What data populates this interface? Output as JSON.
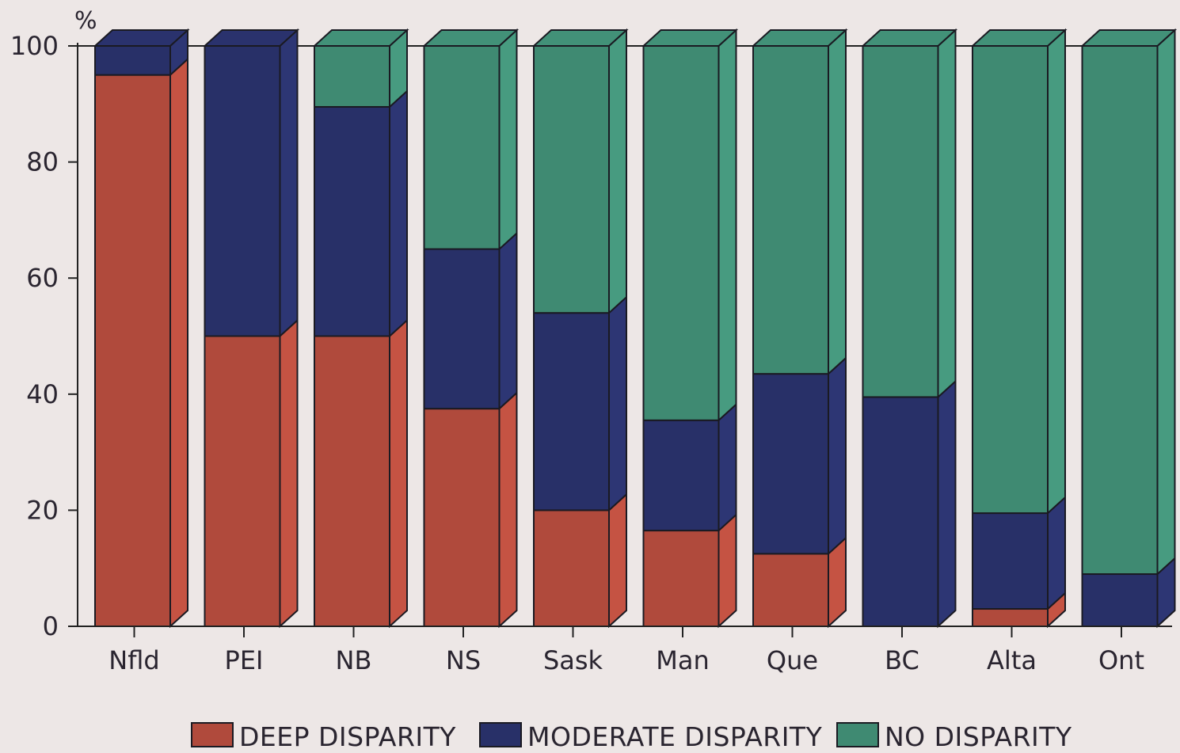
{
  "chart_data": {
    "type": "bar",
    "stacked": true,
    "style": "3d",
    "ylabel": "%",
    "ylim": [
      0,
      100
    ],
    "yticks": [
      0,
      20,
      40,
      60,
      80,
      100
    ],
    "categories": [
      "Nfld",
      "PEI",
      "NB",
      "NS",
      "Sask",
      "Man",
      "Que",
      "BC",
      "Alta",
      "Ont"
    ],
    "series": [
      {
        "name": "DEEP DISPARITY",
        "color": "#b04a3c",
        "values": [
          95,
          50,
          50,
          37.5,
          20,
          16.5,
          12.5,
          0,
          3,
          0
        ]
      },
      {
        "name": "MODERATE DISPARITY",
        "color": "#283068",
        "values": [
          5,
          50,
          39.5,
          27.5,
          34,
          19,
          31,
          39.5,
          16.5,
          9
        ]
      },
      {
        "name": "NO DISPARITY",
        "color": "#3f8a72",
        "values": [
          0,
          0,
          10.5,
          35,
          46,
          64.5,
          56.5,
          60.5,
          80.5,
          91
        ]
      }
    ],
    "legend_position": "bottom",
    "grid": false
  }
}
